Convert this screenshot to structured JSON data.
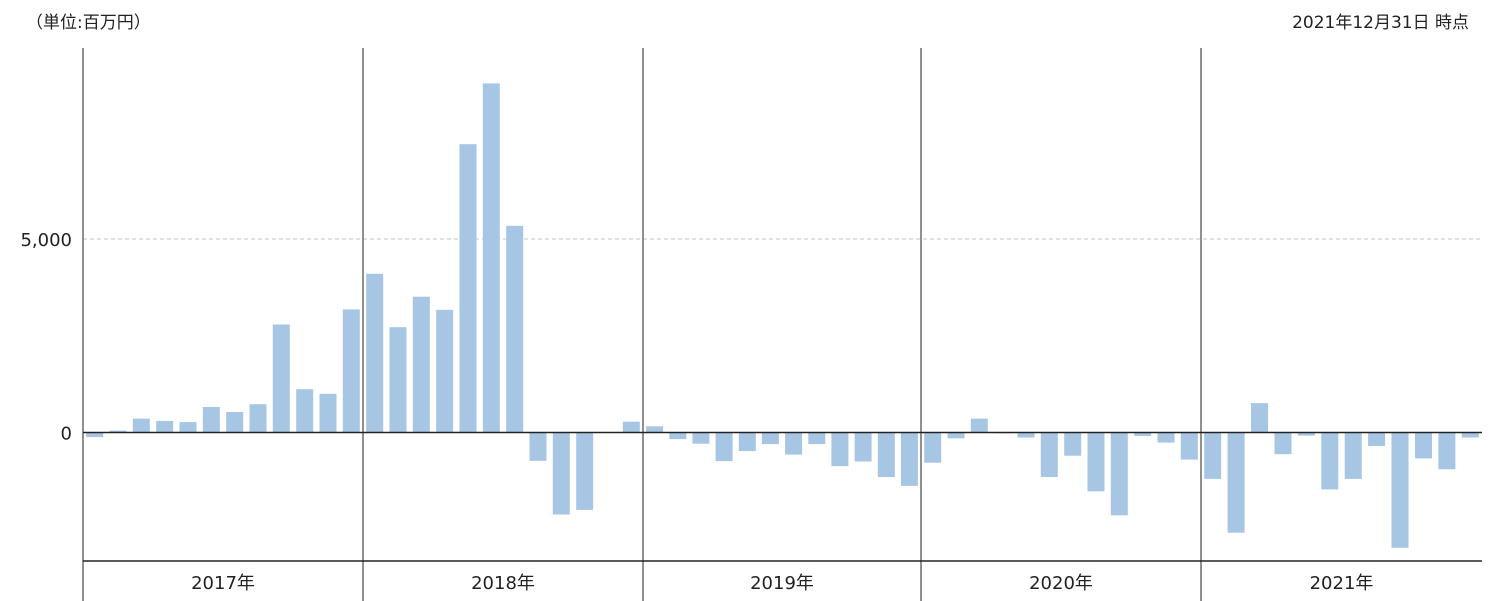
{
  "header": {
    "unit": "（単位:百万円）",
    "as_of": "2021年12月31日 時点"
  },
  "chart_data": {
    "type": "bar",
    "title": "",
    "xlabel": "",
    "ylabel": "",
    "ylim": [
      -3300,
      9800
    ],
    "y_ticks": [
      0,
      5000
    ],
    "y_tick_labels": [
      "0",
      "5,000"
    ],
    "reference_lines": [
      5000
    ],
    "grid": false,
    "bar_color": "#a7c6e4",
    "years": [
      "2017年",
      "2018年",
      "2019年",
      "2020年",
      "2021年"
    ],
    "months_per_year": 12,
    "series": [
      {
        "values": [
          -120,
          50,
          360,
          300,
          270,
          660,
          530,
          730,
          2790,
          1120,
          1000,
          3180,
          4100,
          2720,
          3510,
          3170,
          7450,
          9020,
          5340,
          -730,
          -2120,
          -2000,
          0,
          280,
          160,
          -170,
          -290,
          -740,
          -480,
          -300,
          -570,
          -300,
          -870,
          -750,
          -1150,
          -1380,
          -780,
          -150,
          360,
          -20,
          -130,
          -1150,
          -600,
          -1520,
          -2140,
          -90,
          -260,
          -700,
          -1200,
          -2590,
          760,
          -560,
          -80,
          -1470,
          -1200,
          -350,
          -2980,
          -670,
          -950,
          -130
        ]
      }
    ]
  }
}
